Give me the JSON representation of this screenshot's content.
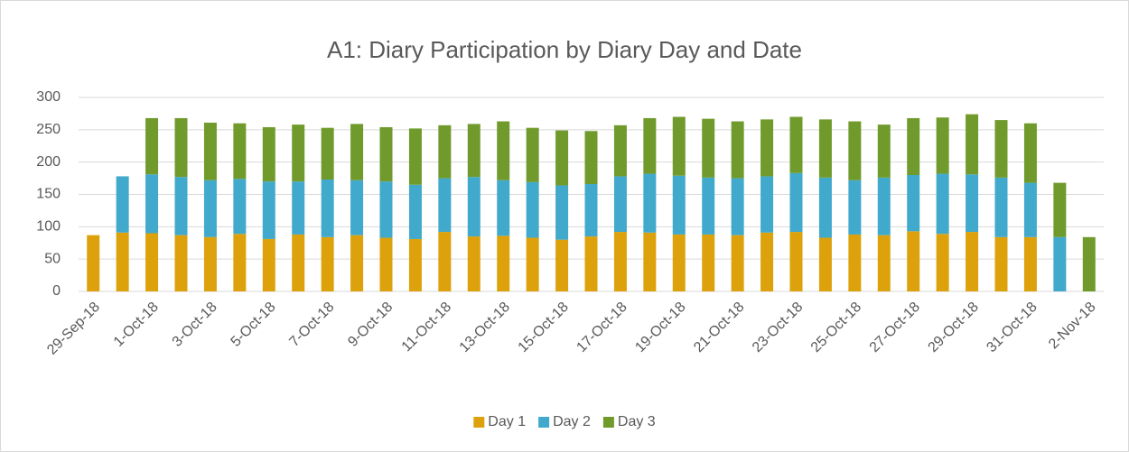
{
  "chart_data": {
    "type": "stacked_bar",
    "title": "A1: Diary Participation by Diary Day and Date",
    "categories": [
      "29-Sep-18",
      null,
      "1-Oct-18",
      null,
      "3-Oct-18",
      null,
      "5-Oct-18",
      null,
      "7-Oct-18",
      null,
      "9-Oct-18",
      null,
      "11-Oct-18",
      null,
      "13-Oct-18",
      null,
      "15-Oct-18",
      null,
      "17-Oct-18",
      null,
      "19-Oct-18",
      null,
      "21-Oct-18",
      null,
      "23-Oct-18",
      null,
      "25-Oct-18",
      null,
      "27-Oct-18",
      null,
      "29-Oct-18",
      null,
      "31-Oct-18",
      null,
      "2-Nov-18"
    ],
    "series": [
      {
        "name": "Day 1",
        "color": "#dda20b",
        "values": [
          87,
          91,
          90,
          87,
          84,
          89,
          81,
          88,
          84,
          87,
          83,
          81,
          92,
          85,
          86,
          83,
          80,
          85,
          92,
          91,
          88,
          88,
          87,
          91,
          92,
          83,
          88,
          87,
          93,
          89,
          92,
          84,
          84,
          null,
          null
        ]
      },
      {
        "name": "Day 2",
        "color": "#41a9cc",
        "values": [
          null,
          87,
          91,
          90,
          88,
          85,
          89,
          82,
          89,
          85,
          87,
          84,
          83,
          92,
          86,
          86,
          84,
          81,
          86,
          91,
          91,
          88,
          88,
          87,
          91,
          93,
          84,
          89,
          87,
          93,
          89,
          92,
          84,
          84,
          null
        ]
      },
      {
        "name": "Day 3",
        "color": "#709b2c",
        "values": [
          null,
          null,
          87,
          91,
          89,
          86,
          84,
          88,
          80,
          87,
          84,
          87,
          82,
          82,
          91,
          84,
          85,
          82,
          79,
          86,
          91,
          91,
          88,
          88,
          87,
          90,
          91,
          82,
          88,
          87,
          93,
          89,
          92,
          84,
          84
        ]
      }
    ],
    "ylim": [
      0,
      300
    ],
    "yticks": [
      0,
      50,
      100,
      150,
      200,
      250,
      300
    ],
    "grid": true,
    "legend": "bottom"
  }
}
